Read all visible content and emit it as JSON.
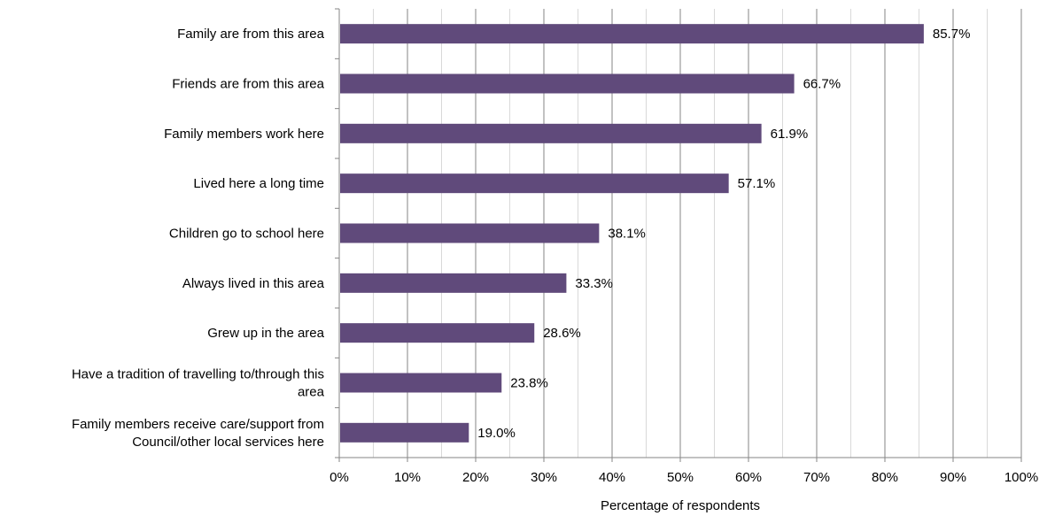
{
  "chart_data": {
    "type": "bar",
    "orientation": "horizontal",
    "title": "",
    "xlabel": "Percentage of respondents",
    "ylabel": "",
    "categories": [
      [
        "Family are from this area"
      ],
      [
        "Friends are from this area"
      ],
      [
        "Family members work here"
      ],
      [
        "Lived here a long time"
      ],
      [
        "Children go to school here"
      ],
      [
        "Always lived in this area"
      ],
      [
        "Grew up in the area"
      ],
      [
        "Have a tradition of travelling to/through this",
        "area"
      ],
      [
        "Family members receive care/support from",
        "Council/other local services here"
      ]
    ],
    "values": [
      85.7,
      66.7,
      61.9,
      57.1,
      38.1,
      33.3,
      28.6,
      23.8,
      19.0
    ],
    "value_labels": [
      "85.7%",
      "66.7%",
      "61.9%",
      "57.1%",
      "38.1%",
      "33.3%",
      "28.6%",
      "23.8%",
      "19.0%"
    ],
    "xlim": [
      0,
      100
    ],
    "x_ticks": [
      "0%",
      "10%",
      "20%",
      "30%",
      "40%",
      "50%",
      "60%",
      "70%",
      "80%",
      "90%",
      "100%"
    ],
    "grid": "vertical major and minor",
    "legend": "none",
    "colors": {
      "bar": "#604a7b",
      "major_grid": "#868686",
      "minor_grid": "#d9d9d9"
    }
  }
}
